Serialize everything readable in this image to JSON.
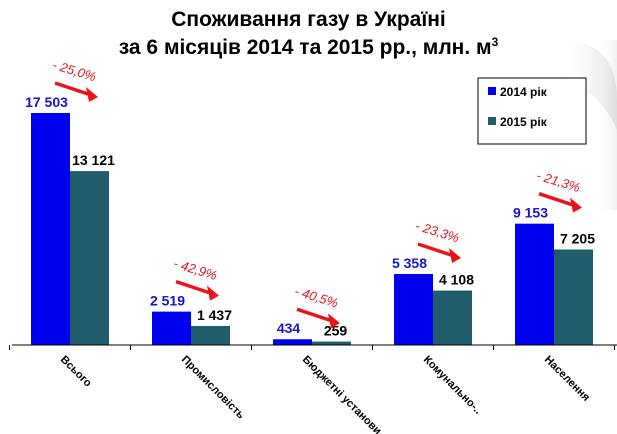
{
  "chart_data": {
    "type": "bar",
    "title_line1": "Споживання газу в Україні",
    "title_line2": "за 6 місяців 2014 та 2015 рр., млн. м",
    "title_unit_sup": "3",
    "categories": [
      "Всього",
      "Промисловість",
      "Бюджетні установи",
      "Комунально-..",
      "Населення"
    ],
    "series": [
      {
        "name": "2014 рік",
        "color": "#0000f0",
        "values": [
          17503,
          2519,
          434,
          5358,
          9153
        ],
        "labels": [
          "17 503",
          "2 519",
          "434",
          "5 358",
          "9 153"
        ]
      },
      {
        "name": "2015 рік",
        "color": "#215c6b",
        "values": [
          13121,
          1437,
          259,
          4108,
          7205
        ],
        "labels": [
          "13 121",
          "1 437",
          "259",
          "4 108",
          "7 205"
        ]
      }
    ],
    "changes": [
      "- 25,0%",
      "- 42,9%",
      "- 40,5%",
      "- 23,3%",
      "- 21,3%"
    ],
    "change_color": "#e8141a",
    "ylim": [
      0,
      20000
    ],
    "grid": false,
    "legend_position": "top-right"
  }
}
